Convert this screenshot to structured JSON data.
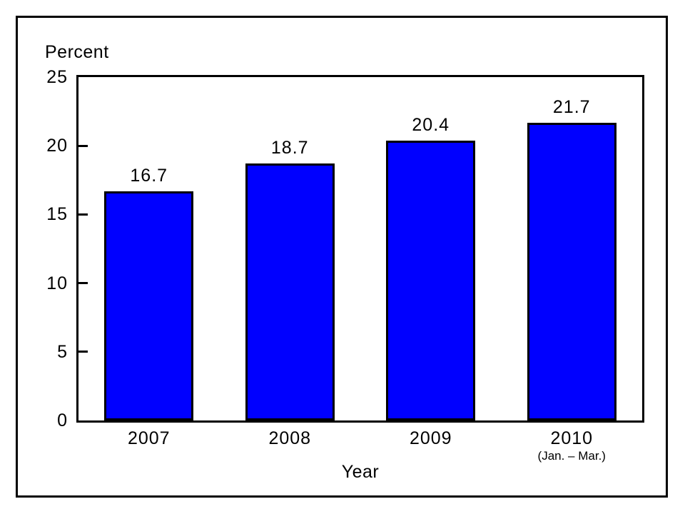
{
  "chart_data": {
    "type": "bar",
    "categories": [
      "2007",
      "2008",
      "2009",
      "2010"
    ],
    "category_subnotes": [
      "",
      "",
      "",
      "(Jan. – Mar.)"
    ],
    "values": [
      16.7,
      18.7,
      20.4,
      21.7
    ],
    "value_labels": [
      "16.7",
      "18.7",
      "20.4",
      "21.7"
    ],
    "ylabel": "Percent",
    "xlabel": "Year",
    "ylim": [
      0,
      25
    ],
    "yticks": [
      0,
      5,
      10,
      15,
      20,
      25
    ],
    "bar_color": "#0000ff",
    "bar_border_color": "#000000",
    "frame_color": "#000000",
    "background_color": "#ffffff",
    "grid": false,
    "legend": "none"
  }
}
